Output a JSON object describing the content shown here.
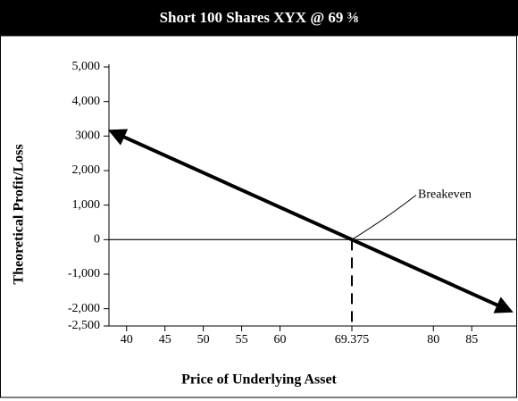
{
  "chart_data": {
    "type": "line",
    "title": "Short 100 Shares XYX @ 69 ⅜",
    "xlabel": "Price of Underlying Asset",
    "ylabel": "Theoretical Profit/Loss",
    "annotation": "Breakeven",
    "x": [
      38,
      90
    ],
    "values": [
      3137.5,
      -2062.5
    ],
    "color": "#000000",
    "breakeven": 69.375,
    "xlim": [
      37.7,
      90.8
    ],
    "ylim": [
      -2500,
      5000
    ],
    "xticks": [
      40,
      45,
      50,
      55,
      60,
      69.375,
      80,
      85
    ],
    "yticks": [
      {
        "value": 5000,
        "label": "5,000"
      },
      {
        "value": 4000,
        "label": "4,000"
      },
      3000,
      {
        "value": 2000,
        "label": "2,000"
      },
      {
        "value": 1000,
        "label": "1,000"
      },
      0,
      {
        "value": -1000,
        "label": "-1,000"
      },
      {
        "value": -2000,
        "label": "-2,000"
      },
      {
        "value": -2500,
        "label": "-2,500"
      }
    ]
  }
}
